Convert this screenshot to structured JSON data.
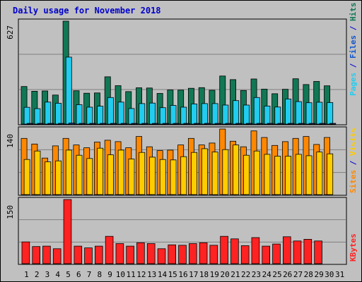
{
  "title": "Daily usage for November 2018",
  "colors": {
    "background": "#c0c0c0",
    "panel": "#c0c0c0",
    "title": "#0000cc",
    "hits": "#117755",
    "files": "#22ccee",
    "pages": "#22ccee",
    "visits": "#ffaa00",
    "sites": "#ff8800",
    "kbytes": "#ff2222",
    "weekend_day": "#117755",
    "separator": "#0000cc"
  },
  "side_labels": {
    "top": [
      {
        "text": "Pages",
        "color": "#22ccee"
      },
      {
        "text": " / ",
        "color": "#0000cc"
      },
      {
        "text": "Files",
        "color": "#1155cc"
      },
      {
        "text": " / ",
        "color": "#0000cc"
      },
      {
        "text": "Hits",
        "color": "#117755"
      }
    ],
    "middle": [
      {
        "text": "Sites",
        "color": "#ff8800"
      },
      {
        "text": " / ",
        "color": "#0000cc"
      },
      {
        "text": "Visits",
        "color": "#ffcc00"
      }
    ],
    "bottom": [
      {
        "text": "KBytes",
        "color": "#ff2222"
      }
    ]
  },
  "chart_data": [
    {
      "type": "bar",
      "panel": "hits-files",
      "categories": [
        "1",
        "2",
        "3",
        "4",
        "5",
        "6",
        "7",
        "8",
        "9",
        "10",
        "11",
        "12",
        "13",
        "14",
        "15",
        "16",
        "17",
        "18",
        "19",
        "20",
        "21",
        "22",
        "23",
        "24",
        "25",
        "26",
        "27",
        "28",
        "29",
        "30",
        "31"
      ],
      "ymax": 627,
      "ymax_label": "627",
      "series": [
        {
          "name": "Hits",
          "color": "#117755",
          "values": [
            229,
            200,
            202,
            177,
            627,
            203,
            188,
            190,
            288,
            234,
            198,
            221,
            220,
            187,
            208,
            207,
            218,
            222,
            206,
            293,
            271,
            205,
            275,
            213,
            185,
            212,
            276,
            241,
            260,
            233,
            0
          ]
        },
        {
          "name": "Files",
          "color": "#22ccee",
          "values": [
            102,
            94,
            134,
            127,
            408,
            118,
            103,
            109,
            162,
            134,
            95,
            125,
            128,
            100,
            114,
            103,
            123,
            125,
            125,
            116,
            143,
            116,
            162,
            110,
            104,
            153,
            137,
            130,
            133,
            131,
            0
          ]
        },
        {
          "name": "Pages",
          "color": "#1155cc",
          "values": [
            4,
            3,
            4,
            3,
            6,
            3,
            3,
            3,
            4,
            4,
            3,
            3,
            3,
            3,
            3,
            3,
            3,
            3,
            3,
            4,
            3,
            3,
            4,
            3,
            3,
            3,
            3,
            3,
            3,
            3,
            0
          ]
        }
      ]
    },
    {
      "type": "bar",
      "panel": "sites-visits",
      "categories": [
        "1",
        "2",
        "3",
        "4",
        "5",
        "6",
        "7",
        "8",
        "9",
        "10",
        "11",
        "12",
        "13",
        "14",
        "15",
        "16",
        "17",
        "18",
        "19",
        "20",
        "21",
        "22",
        "23",
        "24",
        "25",
        "26",
        "27",
        "28",
        "29",
        "30",
        "31"
      ],
      "ymax": 140,
      "ymax_label": "140",
      "series": [
        {
          "name": "Sites",
          "color": "#ff8800",
          "values": [
            120,
            108,
            78,
            104,
            120,
            106,
            100,
            112,
            116,
            113,
            100,
            124,
            102,
            94,
            95,
            106,
            120,
            106,
            110,
            140,
            114,
            102,
            136,
            122,
            105,
            113,
            120,
            124,
            107,
            122,
            0
          ]
        },
        {
          "name": "Visits",
          "color": "#ffcc00",
          "values": [
            75,
            93,
            70,
            72,
            95,
            84,
            77,
            99,
            85,
            95,
            76,
            90,
            80,
            75,
            74,
            81,
            90,
            98,
            91,
            96,
            106,
            84,
            93,
            86,
            82,
            82,
            86,
            83,
            91,
            87,
            0
          ]
        }
      ]
    },
    {
      "type": "bar",
      "panel": "kbytes",
      "categories": [
        "1",
        "2",
        "3",
        "4",
        "5",
        "6",
        "7",
        "8",
        "9",
        "10",
        "11",
        "12",
        "13",
        "14",
        "15",
        "16",
        "17",
        "18",
        "19",
        "20",
        "21",
        "22",
        "23",
        "24",
        "25",
        "26",
        "27",
        "28",
        "29",
        "30",
        "31"
      ],
      "ymax": 150,
      "ymax_label": "150",
      "series": [
        {
          "name": "KBytes",
          "color": "#ff2222",
          "values": [
            51,
            40,
            41,
            35,
            150,
            41,
            37,
            41,
            64,
            47,
            41,
            49,
            47,
            35,
            44,
            43,
            47,
            49,
            43,
            64,
            58,
            42,
            61,
            41,
            46,
            63,
            53,
            57,
            53,
            0,
            0
          ]
        }
      ]
    }
  ],
  "x_labels": {
    "values": [
      "1",
      "2",
      "3",
      "4",
      "5",
      "6",
      "7",
      "8",
      "9",
      "10",
      "11",
      "12",
      "13",
      "14",
      "15",
      "16",
      "17",
      "18",
      "19",
      "20",
      "21",
      "22",
      "23",
      "24",
      "25",
      "26",
      "27",
      "28",
      "29",
      "30",
      "31"
    ],
    "weekend": [
      3,
      4,
      10,
      11,
      17,
      18,
      24,
      25,
      31
    ]
  }
}
